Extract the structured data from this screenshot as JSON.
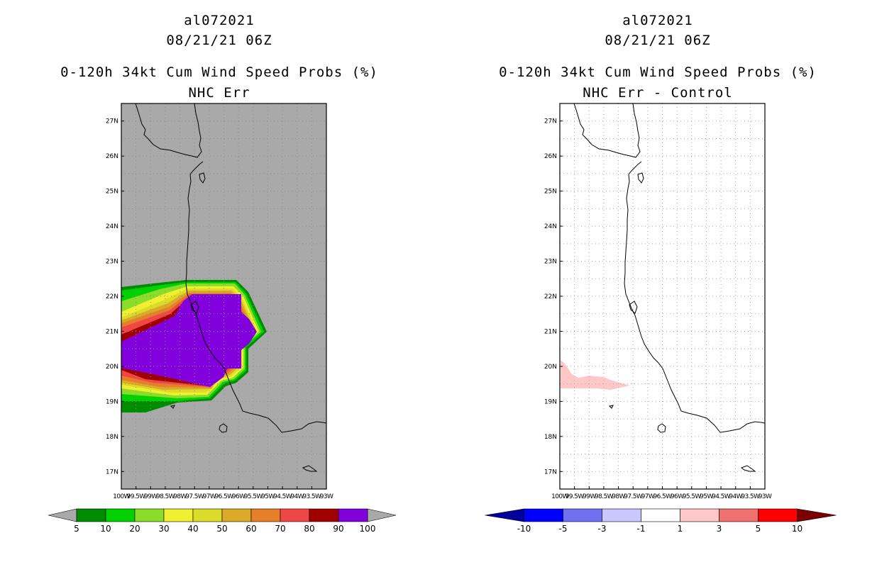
{
  "colors": {
    "land_bg": "#a9a9a9",
    "coast": "#000000",
    "grid": "#999999"
  },
  "axes": {
    "lat_labels": [
      "27N",
      "26N",
      "25N",
      "24N",
      "23N",
      "22N",
      "21N",
      "20N",
      "19N",
      "18N",
      "17N"
    ],
    "lon_labels": [
      "100W",
      "99.5W",
      "99W",
      "98.5W",
      "98W",
      "97.5W",
      "97W",
      "96.5W",
      "96W",
      "95.5W",
      "95W",
      "94.5W",
      "94W",
      "93.5W",
      "93W"
    ],
    "lat_range": [
      16.5,
      27.5
    ],
    "lon_range": [
      -100,
      -93
    ]
  },
  "left": {
    "header_line1": "al072021",
    "header_line2": "08/21/21 06Z",
    "title_line1": "0-120h 34kt Cum Wind Speed Probs (%)",
    "title_line2": "NHC Err",
    "colorbar": {
      "labels": [
        "5",
        "10",
        "20",
        "30",
        "40",
        "50",
        "60",
        "70",
        "80",
        "90",
        "100"
      ],
      "colors": [
        "#008c00",
        "#00d200",
        "#8cdc2a",
        "#f0f030",
        "#dcdc28",
        "#dcaa28",
        "#e67f28",
        "#f04646",
        "#a00000",
        "#8200dc"
      ],
      "under_color": "#a9a9a9",
      "over_color": "#a9a9a9"
    }
  },
  "right": {
    "header_line1": "al072021",
    "header_line2": "08/21/21 06Z",
    "title_line1": "0-120h 34kt Cum Wind Speed Probs (%)",
    "title_line2": "NHC Err - Control",
    "colorbar": {
      "labels": [
        "-10",
        "-5",
        "-3",
        "-1",
        "1",
        "3",
        "5",
        "10"
      ],
      "colors": [
        "#0000ff",
        "#7070f0",
        "#c8c8ff",
        "#ffffff",
        "#ffc8c8",
        "#f07070",
        "#ff0000"
      ],
      "under_color": "#00009a",
      "over_color": "#7a0000"
    }
  }
}
